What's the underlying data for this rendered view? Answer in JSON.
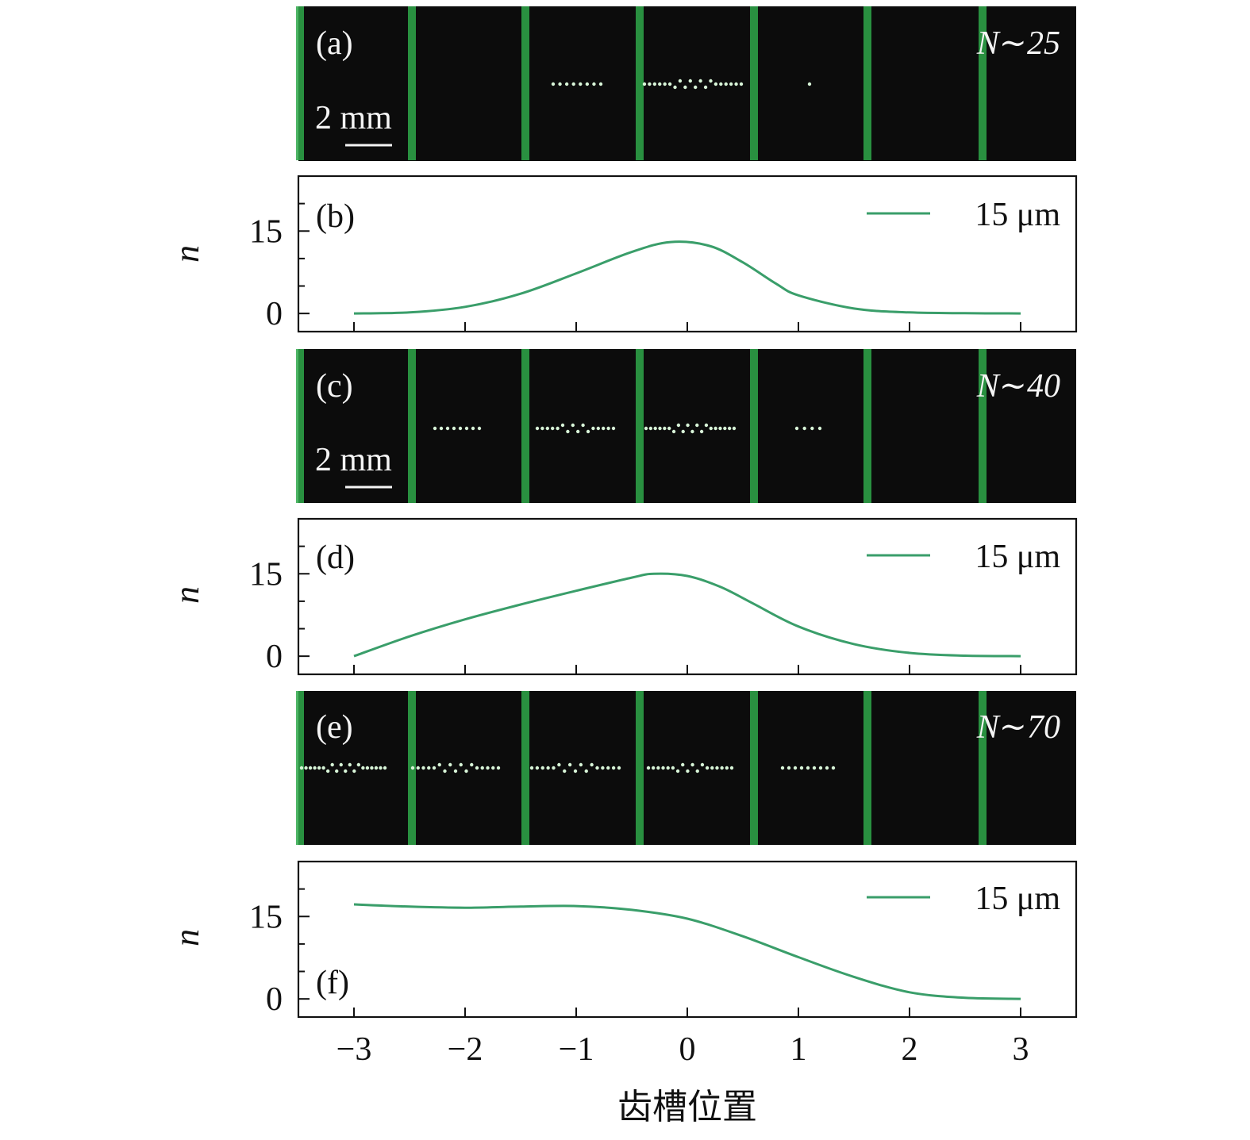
{
  "colors": {
    "curve": "#3a9e6a",
    "image_bg": "#0c0c0c",
    "tooth": "#2fa84a",
    "particle": "#d8f5d8"
  },
  "xlabel": "齿槽位置",
  "x_ticks": [
    "−3",
    "−2",
    "−1",
    "0",
    "1",
    "2",
    "3"
  ],
  "images": [
    {
      "panel": "(a)",
      "count": "N∼25",
      "scale_text": "2 mm",
      "show_scale": true
    },
    {
      "panel": "(c)",
      "count": "N∼40",
      "scale_text": "2 mm",
      "show_scale": true
    },
    {
      "panel": "(e)",
      "count": "N∼70",
      "scale_text": "",
      "show_scale": false
    }
  ],
  "chart_data": [
    {
      "type": "line",
      "panel": "(b)",
      "ylabel": "n",
      "ylim": [
        -3.3,
        25
      ],
      "xlim": [
        -3.5,
        3.5
      ],
      "y_ticks": [
        "0",
        "15"
      ],
      "legend": "15 μm",
      "legend_position": "top-right",
      "series": [
        {
          "name": "15 μm",
          "x": [
            -3,
            -2.5,
            -2,
            -1.5,
            -1,
            -0.5,
            -0.15,
            0.2,
            0.5,
            0.8,
            1,
            1.5,
            2,
            2.5,
            3
          ],
          "y": [
            0,
            0.2,
            1.2,
            3.6,
            7.3,
            11.2,
            13,
            12.3,
            9.3,
            5.4,
            3.3,
            0.9,
            0.2,
            0.05,
            0
          ]
        }
      ]
    },
    {
      "type": "line",
      "panel": "(d)",
      "ylabel": "n",
      "ylim": [
        -3.3,
        25
      ],
      "xlim": [
        -3.5,
        3.5
      ],
      "y_ticks": [
        "0",
        "15"
      ],
      "legend": "15 μm",
      "legend_position": "top-right",
      "series": [
        {
          "name": "15 μm",
          "x": [
            -3,
            -2.5,
            -2,
            -1.5,
            -1,
            -0.5,
            -0.3,
            0,
            0.3,
            0.6,
            1,
            1.5,
            2,
            2.5,
            3
          ],
          "y": [
            0,
            3.6,
            6.7,
            9.4,
            11.9,
            14.3,
            15,
            14.6,
            12.6,
            9.5,
            5.4,
            2.2,
            0.6,
            0.1,
            0
          ]
        }
      ]
    },
    {
      "type": "line",
      "panel": "(f)",
      "ylabel": "n",
      "ylim": [
        -3.3,
        25
      ],
      "xlim": [
        -3.5,
        3.5
      ],
      "y_ticks": [
        "0",
        "15"
      ],
      "legend": "15 μm",
      "legend_position": "top-right",
      "series": [
        {
          "name": "15 μm",
          "x": [
            -3,
            -2.5,
            -2,
            -1.5,
            -1,
            -0.5,
            0,
            0.5,
            1,
            1.5,
            2,
            2.5,
            3
          ],
          "y": [
            17.2,
            16.8,
            16.6,
            16.8,
            16.9,
            16.2,
            14.6,
            11.4,
            7.6,
            4.0,
            1.2,
            0.2,
            0
          ]
        }
      ]
    }
  ]
}
